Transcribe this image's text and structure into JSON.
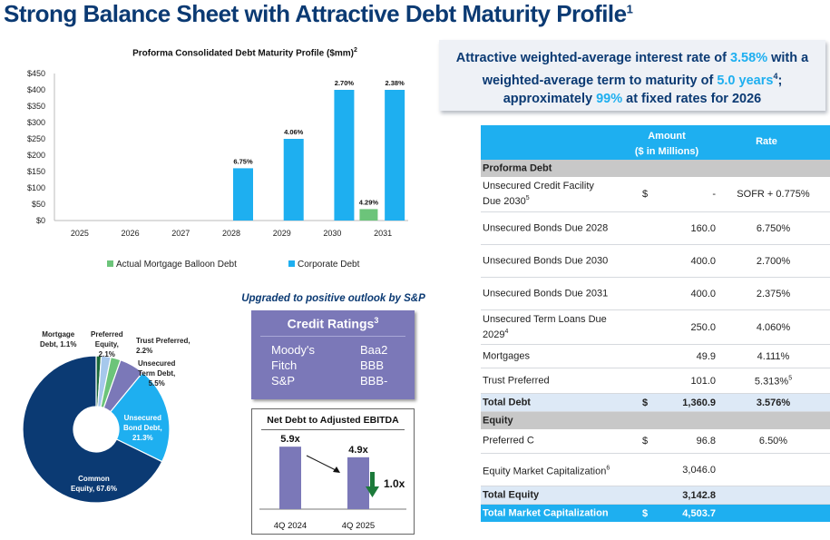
{
  "header": {
    "title": "Strong Balance Sheet with Attractive Debt Maturity Profile",
    "title_sup": "1"
  },
  "chart_data": {
    "type": "bar",
    "title": "Proforma Consolidated Debt Maturity Profile ($mm)",
    "title_sup": "2",
    "categories": [
      "2025",
      "2026",
      "2027",
      "2028",
      "2029",
      "2030",
      "2031"
    ],
    "series": [
      {
        "name": "Corporate Debt",
        "color": "#1eaff0",
        "values": [
          0,
          0,
          0,
          160,
          250,
          400,
          400
        ],
        "labels": [
          "",
          "",
          "",
          "6.75%",
          "4.06%",
          "2.70%",
          "2.38%"
        ]
      },
      {
        "name": "Actual Mortgage Balloon Debt",
        "color": "#6cc47a",
        "values": [
          0,
          0,
          0,
          0,
          0,
          35,
          0
        ],
        "labels": [
          "",
          "",
          "",
          "",
          "",
          "4.29%",
          ""
        ]
      }
    ],
    "yticks": [
      "$0",
      "$50",
      "$100",
      "$150",
      "$200",
      "$250",
      "$300",
      "$350",
      "$400",
      "$450"
    ],
    "ylim": [
      0,
      450
    ],
    "legend": [
      "Actual Mortgage Balloon Debt",
      "Corporate Debt"
    ]
  },
  "callout": {
    "p1": "Attractive weighted-average interest rate of ",
    "rate": "3.58%",
    "p2": " with a weighted-average term to maturity of ",
    "term": "5.0 years",
    "sup": "4",
    "p3": "; approximately ",
    "pct": "99%",
    "p4": " at fixed rates for 2026"
  },
  "table": {
    "header_amount_1": "Amount",
    "header_amount_2": "($ in Millions)",
    "header_rate": "Rate",
    "sec1": "Proforma Debt",
    "r1": {
      "l1": "Unsecured Credit Facility",
      "l2": "Due 2030",
      "sup": "5",
      "cur": "$",
      "amt": "-",
      "rate": "SOFR + 0.775%"
    },
    "r2": {
      "label": "Unsecured Bonds Due 2028",
      "amt": "160.0",
      "rate": "6.750%"
    },
    "r3": {
      "label": "Unsecured Bonds Due 2030",
      "amt": "400.0",
      "rate": "2.700%"
    },
    "r4": {
      "label": "Unsecured Bonds Due 2031",
      "amt": "400.0",
      "rate": "2.375%"
    },
    "r5": {
      "l1": "Unsecured Term Loans Due",
      "l2": "2029",
      "sup": "4",
      "amt": "250.0",
      "rate": "4.060%"
    },
    "r6": {
      "label": "Mortgages",
      "amt": "49.9",
      "rate": "4.111%"
    },
    "r7": {
      "label": "Trust Preferred",
      "amt": "101.0",
      "rate": "5.313%",
      "sup": "5"
    },
    "total_debt": {
      "label": "Total Debt",
      "cur": "$",
      "amt": "1,360.9",
      "rate": "3.576%"
    },
    "sec2": "Equity",
    "r8": {
      "label": "Preferred C",
      "cur": "$",
      "amt": "96.8",
      "rate": "6.50%"
    },
    "r9": {
      "label": "Equity Market Capitalization",
      "sup": "6",
      "amt": "3,046.0"
    },
    "total_equity": {
      "label": "Total Equity",
      "amt": "3,142.8"
    },
    "total_cap": {
      "label": "Total Market Capitalization",
      "cur": "$",
      "amt": "4,503.7"
    }
  },
  "pie": {
    "slices": [
      {
        "name": "Mortgage Debt",
        "pct": 1.1,
        "color": "#1c6b3a",
        "label1": "Mortgage",
        "label2": "Debt, 1.1%"
      },
      {
        "name": "Preferred Equity",
        "pct": 2.1,
        "color": "#a6c8ec",
        "label1": "Preferred",
        "label2": "Equity,",
        "label3": "2.1%"
      },
      {
        "name": "Trust Preferred",
        "pct": 2.2,
        "color": "#6cc47a",
        "label1": "Trust Preferred,",
        "label2": "2.2%"
      },
      {
        "name": "Unsecured Term Debt",
        "pct": 5.5,
        "color": "#7b78b8",
        "label1": "Unsecured",
        "label2": "Term Debt,",
        "label3": "5.5%"
      },
      {
        "name": "Unsecured Bond Debt",
        "pct": 21.3,
        "color": "#1eaff0",
        "label1": "Unsecured",
        "label2": "Bond Debt,",
        "label3": "21.3%"
      },
      {
        "name": "Common Equity",
        "pct": 67.6,
        "color": "#0b3a73",
        "label1": "Common",
        "label2": "Equity, 67.6%"
      }
    ]
  },
  "ratings": {
    "upgrade": "Upgraded to positive outlook by S&P",
    "title": "Credit Ratings",
    "title_sup": "3",
    "rows": [
      {
        "agency": "Moody's",
        "rating": "Baa2"
      },
      {
        "agency": "Fitch",
        "rating": "BBB"
      },
      {
        "agency": "S&P",
        "rating": "BBB-"
      }
    ]
  },
  "ebitda": {
    "title": "Net Debt to Adjusted EBITDA",
    "bars": [
      {
        "label": "4Q 2024",
        "value": 5.9,
        "text": "5.9x"
      },
      {
        "label": "4Q 2025",
        "value": 4.9,
        "text": "4.9x"
      }
    ],
    "change": "1.0x",
    "bar_color": "#7b78b8",
    "arrow_color": "#1c7a3a"
  }
}
